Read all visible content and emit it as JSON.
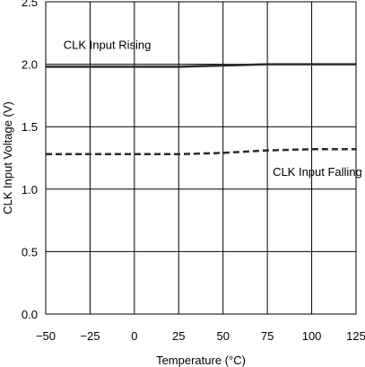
{
  "chart_data": {
    "type": "line",
    "title": "",
    "xlabel": "Temperature (°C)",
    "ylabel": "CLK Input Voltage (V)",
    "xlim": [
      -50,
      125
    ],
    "ylim": [
      0,
      2.5
    ],
    "x_ticks": [
      -50,
      -25,
      0,
      25,
      50,
      75,
      100,
      125
    ],
    "x_tick_labels": [
      "−50",
      "−25",
      "0",
      "25",
      "50",
      "75",
      "100",
      "125"
    ],
    "y_ticks": [
      0,
      0.5,
      1.0,
      1.5,
      2.0,
      2.5
    ],
    "y_tick_labels": [
      "0.0",
      "0.5",
      "1.0",
      "1.5",
      "2.0",
      "2.5"
    ],
    "grid": true,
    "legend": "none",
    "series": [
      {
        "name": "CLK Input Rising",
        "style": "solid",
        "color": "#2b2b2b",
        "x": [
          -50,
          -25,
          0,
          25,
          50,
          75,
          100,
          125
        ],
        "y": [
          1.98,
          1.98,
          1.98,
          1.98,
          1.99,
          2.0,
          2.0,
          2.0
        ]
      },
      {
        "name": "CLK Input Falling",
        "style": "dashed",
        "color": "#2b2b2b",
        "x": [
          -50,
          -25,
          0,
          25,
          50,
          75,
          100,
          125
        ],
        "y": [
          1.28,
          1.28,
          1.28,
          1.28,
          1.29,
          1.31,
          1.32,
          1.32
        ]
      }
    ]
  }
}
